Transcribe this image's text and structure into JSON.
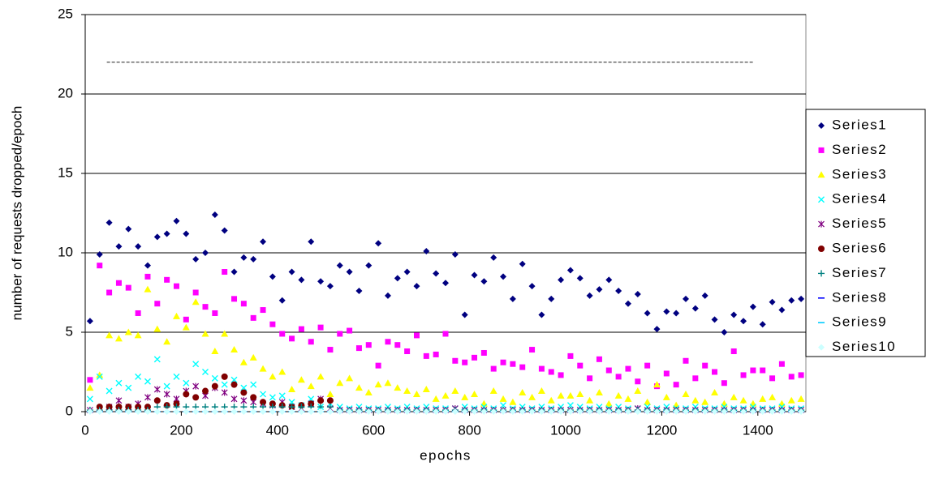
{
  "chart_data": {
    "type": "scatter",
    "x_label": "epochs",
    "y_label": "number of requests dropped/epoch",
    "xlim": [
      0,
      1500
    ],
    "xticks": [
      0,
      200,
      400,
      600,
      800,
      1000,
      1200,
      1400
    ],
    "ylim": [
      0,
      25
    ],
    "yticks": [
      0,
      5,
      10,
      15,
      20,
      25
    ],
    "grid": true,
    "legend": "right",
    "hline": {
      "y": 22,
      "x": [
        45,
        1390
      ]
    },
    "x": [
      10,
      30,
      50,
      70,
      90,
      110,
      130,
      150,
      170,
      190,
      210,
      230,
      250,
      270,
      290,
      310,
      330,
      350,
      370,
      390,
      410,
      430,
      450,
      470,
      490,
      510,
      530,
      550,
      570,
      590,
      610,
      630,
      650,
      670,
      690,
      710,
      730,
      750,
      770,
      790,
      810,
      830,
      850,
      870,
      890,
      910,
      930,
      950,
      970,
      990,
      1010,
      1030,
      1050,
      1070,
      1090,
      1110,
      1130,
      1150,
      1170,
      1190,
      1210,
      1230,
      1250,
      1270,
      1290,
      1310,
      1330,
      1350,
      1370,
      1390,
      1410,
      1430,
      1450,
      1470,
      1490
    ],
    "series": [
      {
        "name": "Series1",
        "color": "#000080",
        "marker": "diamond",
        "values": [
          5.7,
          9.9,
          11.9,
          10.4,
          11.5,
          10.4,
          9.2,
          11.0,
          11.2,
          12.0,
          11.2,
          9.6,
          10.0,
          12.4,
          11.4,
          8.8,
          9.7,
          9.6,
          10.7,
          8.5,
          7.0,
          8.8,
          8.3,
          10.7,
          8.2,
          7.9,
          9.2,
          8.8,
          7.6,
          9.2,
          10.6,
          7.3,
          8.4,
          8.8,
          7.9,
          10.1,
          8.7,
          8.1,
          9.9,
          6.1,
          8.6,
          8.2,
          9.7,
          8.5,
          7.1,
          9.3,
          7.9,
          6.1,
          7.1,
          8.3,
          8.9,
          8.4,
          7.3,
          7.7,
          8.3,
          7.6,
          6.8,
          7.4,
          6.2,
          5.2,
          6.3,
          6.2,
          7.1,
          6.5,
          7.3,
          5.8,
          5.0,
          6.1,
          5.7,
          6.6,
          5.5,
          6.9,
          6.4,
          7.0,
          7.1
        ]
      },
      {
        "name": "Series2",
        "color": "#ff00ff",
        "marker": "square",
        "values": [
          2.0,
          9.2,
          7.5,
          8.1,
          7.8,
          6.2,
          8.5,
          6.8,
          8.3,
          7.9,
          5.8,
          7.5,
          6.6,
          6.2,
          8.8,
          7.1,
          6.8,
          5.9,
          6.4,
          5.5,
          4.9,
          4.6,
          5.2,
          4.4,
          5.3,
          3.9,
          4.9,
          5.1,
          4.0,
          4.2,
          2.9,
          4.4,
          4.2,
          3.8,
          4.8,
          3.5,
          3.6,
          4.9,
          3.2,
          3.1,
          3.4,
          3.7,
          2.7,
          3.1,
          3.0,
          2.8,
          3.9,
          2.7,
          2.5,
          2.3,
          3.5,
          2.9,
          2.1,
          3.3,
          2.6,
          2.2,
          2.7,
          1.9,
          2.9,
          1.6,
          2.4,
          1.7,
          3.2,
          2.1,
          2.9,
          2.5,
          1.8,
          3.8,
          2.3,
          2.6,
          2.6,
          2.1,
          3.0,
          2.2,
          2.3
        ]
      },
      {
        "name": "Series3",
        "color": "#ffff00",
        "marker": "triangle",
        "values": [
          1.5,
          2.3,
          4.8,
          4.6,
          5.0,
          4.8,
          7.7,
          5.2,
          4.4,
          6.0,
          5.3,
          6.9,
          4.9,
          3.8,
          4.9,
          3.9,
          3.1,
          3.4,
          2.7,
          2.2,
          2.5,
          1.4,
          2.0,
          1.6,
          2.2,
          1.1,
          1.8,
          2.1,
          1.5,
          1.2,
          1.7,
          1.8,
          1.5,
          1.3,
          1.1,
          1.4,
          0.8,
          1.0,
          1.3,
          0.9,
          1.1,
          0.5,
          1.3,
          0.8,
          0.6,
          1.2,
          0.9,
          1.3,
          0.7,
          1.0,
          1.0,
          1.1,
          0.7,
          1.2,
          0.5,
          1.0,
          0.8,
          1.3,
          0.6,
          1.7,
          0.9,
          0.4,
          1.1,
          0.7,
          0.6,
          1.2,
          0.5,
          0.9,
          0.7,
          0.5,
          0.8,
          0.9,
          0.5,
          0.7,
          0.8
        ]
      },
      {
        "name": "Series4",
        "color": "#00ffff",
        "marker": "x",
        "values": [
          0.8,
          2.2,
          1.3,
          1.8,
          1.5,
          2.2,
          1.9,
          3.3,
          1.6,
          2.2,
          1.8,
          3.0,
          2.5,
          2.1,
          1.7,
          2.0,
          1.5,
          1.7,
          1.1,
          0.9,
          1.0,
          0.6,
          0.4,
          0.8,
          0.3,
          0.5,
          0.3,
          0.2,
          0.3,
          0.2,
          0.2,
          0.3,
          0.2,
          0.3,
          0.2,
          0.3,
          0.2,
          0.2,
          0.2,
          0.3,
          0.2,
          0.3,
          0.2,
          0.4,
          0.2,
          0.3,
          0.2,
          0.3,
          0.2,
          0.3,
          0.4,
          0.3,
          0.2,
          0.3,
          0.2,
          0.3,
          0.2,
          0.2,
          0.3,
          0.2,
          0.3,
          0.2,
          0.2,
          0.3,
          0.2,
          0.2,
          0.3,
          0.2,
          0.2,
          0.3,
          0.2,
          0.2,
          0.3,
          0.2,
          0.2
        ]
      },
      {
        "name": "Series5",
        "color": "#800080",
        "marker": "star",
        "values": [
          0.1,
          0.2,
          0.3,
          0.7,
          0.3,
          0.5,
          0.9,
          1.4,
          1.1,
          0.8,
          1.3,
          1.6,
          1.0,
          1.5,
          1.2,
          0.8,
          0.7,
          0.6,
          0.5,
          0.4,
          0.6,
          0.3,
          0.2,
          0.5,
          0.8,
          0.2,
          0.1,
          0.1,
          0.1,
          0.1,
          0.1,
          0.1,
          0.1,
          0.1,
          0.1,
          0.1,
          0.1,
          0.1,
          0.2,
          0.1,
          0.1,
          0.1,
          0.1,
          0.1,
          0.1,
          0.1,
          0.1,
          0.1,
          0.1,
          0.1,
          0.1,
          0.1,
          0.1,
          0.1,
          0.1,
          0.1,
          0.1,
          0.2,
          0.1,
          0.1,
          0.1,
          0.1,
          0.1,
          0.1,
          0.1,
          0.1,
          0.1,
          0.1,
          0.1,
          0.1,
          0.1,
          0.1,
          0.1,
          0.1,
          0.1
        ]
      },
      {
        "name": "Series6",
        "color": "#800000",
        "marker": "circle",
        "values": [
          null,
          0.3,
          0.3,
          0.3,
          0.3,
          0.3,
          0.3,
          0.7,
          0.4,
          0.5,
          1.1,
          0.9,
          1.3,
          1.6,
          2.2,
          1.7,
          1.2,
          0.9,
          0.6,
          0.5,
          0.4,
          0.3,
          0.4,
          0.5,
          0.7,
          0.7,
          null,
          null,
          null,
          null,
          null,
          null,
          null,
          null,
          null,
          null,
          null,
          null,
          null,
          null,
          null,
          null,
          null,
          null,
          null,
          null,
          null,
          null,
          null,
          null,
          null,
          null,
          null,
          null,
          null,
          null,
          null,
          null,
          null,
          null,
          null,
          null,
          null,
          null,
          null,
          null,
          null,
          null,
          null,
          null,
          null,
          null,
          null,
          null,
          null
        ]
      },
      {
        "name": "Series7",
        "color": "#008080",
        "marker": "plus",
        "values": [
          0.1,
          0.1,
          0.1,
          0.1,
          0.1,
          0.1,
          0.1,
          0.3,
          0.3,
          0.3,
          0.3,
          0.3,
          0.3,
          0.3,
          0.3,
          0.3,
          0.3,
          0.3,
          0.3,
          0.3,
          0.3,
          0.3,
          0.3,
          0.3,
          0.3,
          0.3,
          0.1,
          0.1,
          0.1,
          0.1,
          0.1,
          0.1,
          0.1,
          0.1,
          0.1,
          0.1,
          0.1,
          0.1,
          0.1,
          0.1,
          0.1,
          0.1,
          0.1,
          0.1,
          0.1,
          0.1,
          0.1,
          0.1,
          0.1,
          0.1,
          0.1,
          0.1,
          0.1,
          0.1,
          0.1,
          0.1,
          0.1,
          0.1,
          0.1,
          0.1,
          0.1,
          0.1,
          0.1,
          0.1,
          0.1,
          0.1,
          0.1,
          0.1,
          0.1,
          0.1,
          0.1,
          0.1,
          0.1,
          0.1,
          0.1
        ]
      },
      {
        "name": "Series8",
        "color": "#0000ff",
        "marker": "dash",
        "values": [
          0,
          0,
          0,
          0,
          0,
          0,
          0,
          0,
          0,
          0,
          0,
          0,
          0,
          0,
          0,
          0,
          0,
          0,
          0,
          0,
          0,
          0,
          0,
          0,
          0,
          0,
          0,
          0,
          0,
          0,
          0,
          0,
          0,
          0,
          0,
          0,
          0,
          0,
          0,
          0,
          0,
          0,
          0,
          0,
          0,
          0,
          0,
          0,
          0,
          0,
          0,
          0,
          0,
          0,
          0,
          0,
          0,
          0,
          0,
          0,
          0,
          0,
          0,
          0,
          0,
          0,
          0,
          0,
          0,
          0,
          0,
          0,
          0,
          0,
          0
        ]
      },
      {
        "name": "Series9",
        "color": "#00ccff",
        "marker": "dash",
        "values": [
          0,
          0,
          0,
          0,
          0,
          0,
          0,
          0,
          0,
          0,
          0,
          0,
          0,
          0,
          0,
          0,
          0,
          0,
          0,
          0,
          0,
          0,
          0,
          0,
          0,
          0,
          0,
          0,
          0,
          0,
          0,
          0,
          0,
          0,
          0,
          0,
          0,
          0,
          0,
          0,
          0,
          0,
          0,
          0,
          0,
          0,
          0,
          0,
          0,
          0,
          0,
          0,
          0,
          0,
          0,
          0,
          0,
          0,
          0,
          0,
          0,
          0,
          0,
          0,
          0,
          0,
          0,
          0,
          0,
          0,
          0,
          0,
          0,
          0,
          0
        ]
      },
      {
        "name": "Series10",
        "color": "#ccffff",
        "marker": "diamond",
        "values": [
          0,
          0,
          0,
          0,
          0,
          0,
          0,
          0,
          0,
          0,
          0,
          0,
          0,
          0,
          0,
          0,
          0,
          0,
          0,
          0,
          0,
          0,
          0,
          0,
          0,
          0,
          0,
          0,
          0,
          0,
          0,
          0,
          0,
          0,
          0,
          0,
          0,
          0,
          0,
          0,
          0,
          0,
          0,
          0,
          0,
          0,
          0,
          0,
          0,
          0,
          0,
          0,
          0,
          0,
          0,
          0,
          0,
          0,
          0,
          0,
          0,
          0,
          0,
          0,
          0,
          0,
          0,
          0,
          0,
          0,
          0,
          0,
          0,
          0,
          0
        ]
      }
    ]
  }
}
